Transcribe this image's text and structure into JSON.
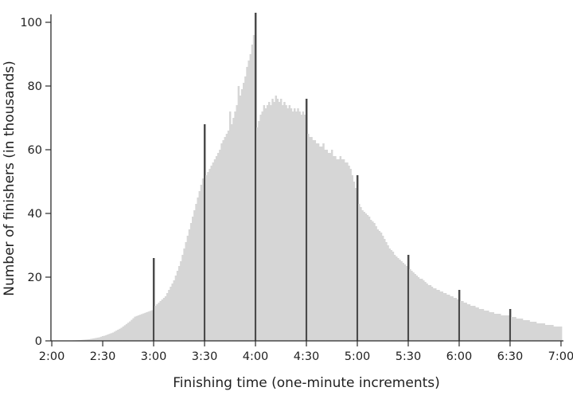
{
  "chart_data": {
    "type": "bar",
    "title": "",
    "xlabel": "Finishing time (one-minute increments)",
    "ylabel": "Number of finishers (in thousands)",
    "x_unit": "minutes",
    "x_start_minute": 120,
    "x_end_minute": 420,
    "x_tick_minutes": [
      120,
      150,
      180,
      210,
      240,
      270,
      300,
      330,
      360,
      390,
      420
    ],
    "x_tick_labels": [
      "2:00",
      "2:30",
      "3:00",
      "3:30",
      "4:00",
      "4:30",
      "5:00",
      "5:30",
      "6:00",
      "6:30",
      "7:00"
    ],
    "y_ticks": [
      0,
      20,
      40,
      60,
      80,
      100
    ],
    "ylim": [
      0,
      105
    ],
    "grid": false,
    "legend": "none",
    "bar_color": "#d6d6d6",
    "spike_color": "#4a4a4a",
    "axis_color": "#2b2b2b",
    "spike_minutes": [
      180,
      210,
      240,
      270,
      300,
      330,
      360,
      390
    ],
    "values": [
      0.05,
      0.05,
      0.05,
      0.06,
      0.06,
      0.07,
      0.08,
      0.08,
      0.09,
      0.1,
      0.1,
      0.12,
      0.13,
      0.15,
      0.17,
      0.2,
      0.22,
      0.25,
      0.3,
      0.35,
      0.4,
      0.45,
      0.5,
      0.6,
      0.7,
      0.8,
      0.9,
      1.0,
      1.1,
      1.3,
      1.5,
      1.6,
      1.8,
      2.0,
      2.2,
      2.4,
      2.6,
      2.9,
      3.2,
      3.5,
      3.8,
      4.1,
      4.5,
      4.9,
      5.3,
      5.7,
      6.1,
      6.6,
      7.1,
      7.6,
      7.8,
      8.0,
      8.2,
      8.4,
      8.6,
      8.8,
      9.0,
      9.2,
      9.4,
      9.6,
      26,
      11,
      11.5,
      12,
      12.5,
      13,
      13.5,
      14,
      15,
      16,
      17,
      18,
      19,
      20.5,
      22,
      23.5,
      25,
      27,
      29,
      31,
      33,
      35,
      37,
      39,
      41,
      43,
      45,
      47,
      49,
      51,
      68,
      52,
      53,
      54,
      55,
      56,
      57,
      58,
      59,
      60,
      62,
      63,
      64,
      65,
      66,
      72,
      68,
      70,
      72,
      74,
      80,
      77,
      79,
      81,
      83,
      86,
      88,
      90,
      93,
      96,
      103,
      67,
      69,
      71,
      72,
      74,
      73,
      74,
      75,
      74,
      76,
      75,
      77,
      76,
      75,
      76,
      74,
      75,
      74,
      73,
      74,
      73,
      72,
      73,
      72,
      73,
      72,
      71,
      72,
      71,
      76,
      65,
      64,
      64,
      63,
      63,
      62,
      62,
      61,
      61,
      62,
      60,
      60,
      59,
      59,
      60,
      58,
      58,
      57,
      57,
      58,
      57,
      57,
      56,
      56,
      55,
      54,
      52,
      50,
      48,
      52,
      43,
      42,
      41,
      40.5,
      40,
      39.5,
      39,
      38,
      37.5,
      37,
      36,
      35,
      34.5,
      34,
      33,
      32,
      31,
      30,
      29,
      28.5,
      28,
      27,
      26.5,
      26,
      25.5,
      25,
      24.5,
      24,
      23.5,
      27,
      22.5,
      22,
      21.5,
      21,
      20.5,
      20,
      19.5,
      19.5,
      19,
      18.5,
      18,
      17.5,
      17.5,
      17,
      16.5,
      16.5,
      16,
      16,
      15.5,
      15.5,
      15,
      15,
      14.5,
      14.5,
      14,
      14,
      13.5,
      13.5,
      13,
      16,
      12.5,
      12.5,
      12,
      12,
      11.5,
      11.5,
      11,
      11,
      11,
      10.5,
      10.5,
      10,
      10,
      10,
      9.5,
      9.5,
      9.5,
      9,
      9,
      9,
      8.5,
      8.5,
      8.5,
      8.5,
      8,
      8,
      8,
      8,
      8,
      10,
      7.5,
      7.5,
      7.5,
      7,
      7,
      7,
      7,
      6.5,
      6.5,
      6.5,
      6.5,
      6,
      6,
      6,
      6,
      5.5,
      5.5,
      5.5,
      5.5,
      5.5,
      5,
      5,
      5,
      5,
      5,
      4.5,
      4.5,
      4.5,
      4.5,
      4.5
    ]
  }
}
